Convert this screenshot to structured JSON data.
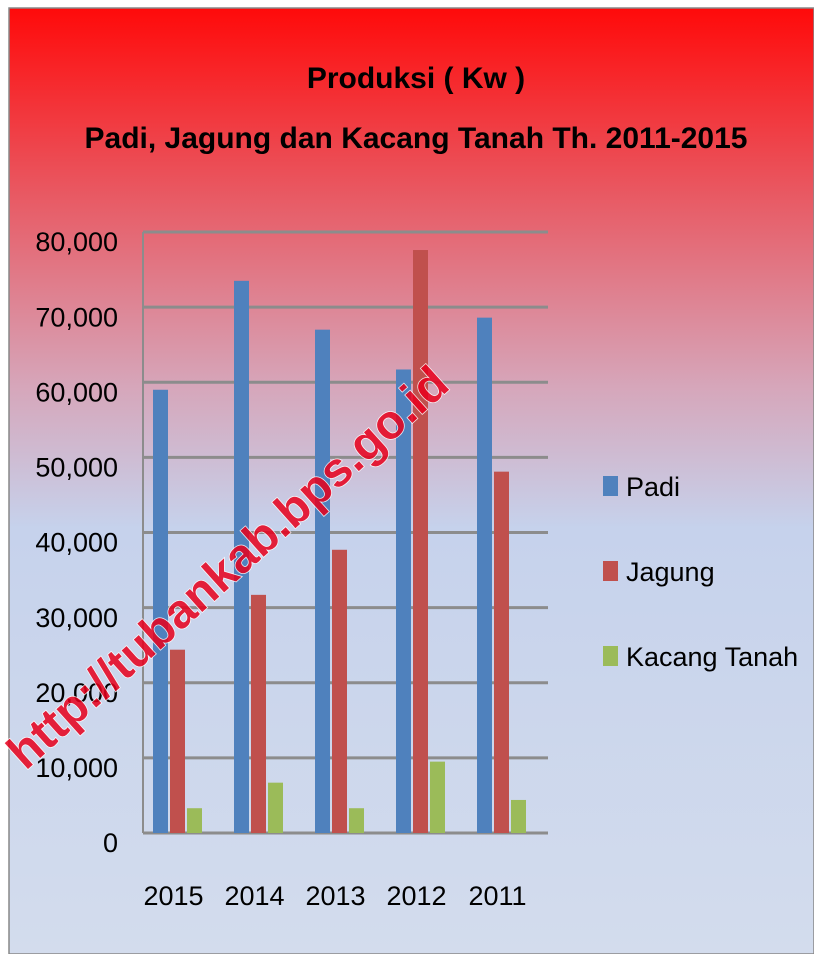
{
  "chart_data": {
    "type": "bar",
    "title": "Produksi ( Kw )",
    "subtitle": "Padi, Jagung dan Kacang Tanah Th. 2011-2015",
    "categories": [
      "2015",
      "2014",
      "2013",
      "2012",
      "2011"
    ],
    "series": [
      {
        "name": "Padi",
        "color": "#4f81bd",
        "values": [
          59000,
          73500,
          67000,
          61700,
          68600
        ]
      },
      {
        "name": "Jagung",
        "color": "#c0504d",
        "values": [
          24400,
          31700,
          37700,
          77600,
          48100
        ]
      },
      {
        "name": "Kacang Tanah",
        "color": "#9bbb59",
        "values": [
          3300,
          6700,
          3300,
          9500,
          4400
        ]
      }
    ],
    "ylim": [
      0,
      80000
    ],
    "yticks": [
      0,
      {
        "value": 10000,
        "label": "10,000"
      },
      {
        "value": 20000,
        "label": "20,000"
      },
      {
        "value": 30000,
        "label": "30,000"
      },
      {
        "value": 40000,
        "label": "40,000"
      },
      {
        "value": 50000,
        "label": "50,000"
      },
      {
        "value": 60000,
        "label": "60,000"
      },
      {
        "value": 70000,
        "label": "70,000"
      },
      {
        "value": 80000,
        "label": "80,000"
      }
    ],
    "grid": true,
    "legend": "right",
    "watermark": "http://tubankab.bps.go.id"
  }
}
